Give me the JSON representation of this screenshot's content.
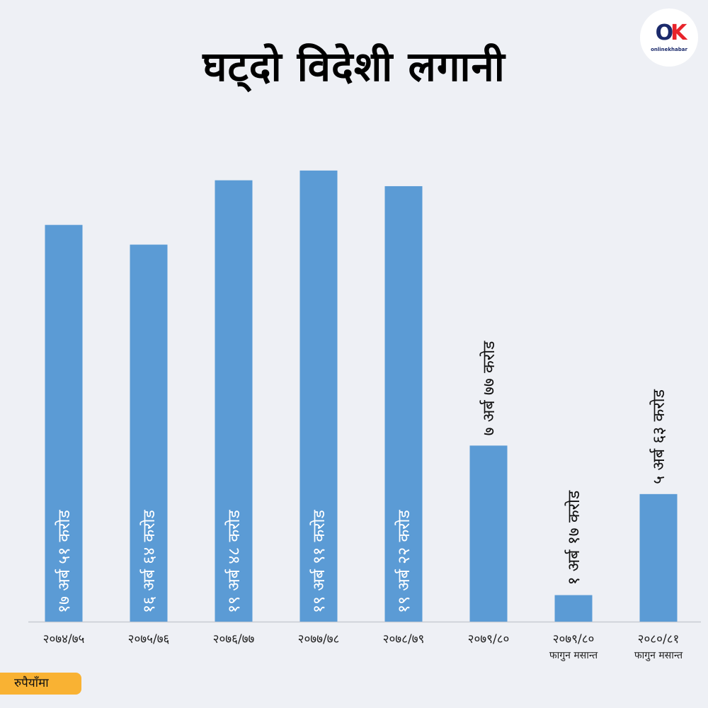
{
  "title": "घट्दो विदेशी लगानी",
  "logo": {
    "text_o": "O",
    "text_k": "K",
    "wordmark": "onlinekhabar"
  },
  "unit": "रुपैयाँमा",
  "colors": {
    "bar": "#5b9bd5",
    "background": "#eef0f5",
    "badge": "#f9b233"
  },
  "chart_data": {
    "type": "bar",
    "title": "घट्दो विदेशी लगानी",
    "ylabel": "",
    "xlabel": "",
    "unit": "रुपैयाँमा",
    "ylim": [
      0,
      20
    ],
    "grid": false,
    "categories": [
      [
        "२०७४/७५"
      ],
      [
        "२०७५/७६"
      ],
      [
        "२०७६/७७"
      ],
      [
        "२०७७/७८"
      ],
      [
        "२०७८/७९"
      ],
      [
        "२०७९/८०"
      ],
      [
        "२०७९/८०",
        "फागुन मसान्त"
      ],
      [
        "२०८०/८१",
        "फागुन मसान्त"
      ]
    ],
    "values": [
      17.51,
      16.64,
      19.48,
      19.91,
      19.22,
      7.77,
      1.17,
      5.63
    ],
    "data_labels": [
      "१७ अर्ब ५१ करोड",
      "१६ अर्ब ६४ करोड",
      "१९ अर्ब ४८ करोड",
      "१९ अर्ब ९१ करोड",
      "१९ अर्ब २२ करोड",
      "७ अर्ब ७७ करोड",
      "१ अर्ब १७ करोड",
      "५ अर्ब ६३ करोड"
    ]
  }
}
